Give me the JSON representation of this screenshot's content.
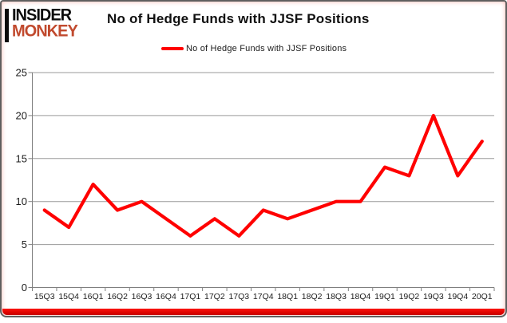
{
  "logo": {
    "line1": "INSIDER",
    "line2": "MONKEY",
    "line2_color": "#c14a2e"
  },
  "header": {
    "title": "No of Hedge Funds with JJSF Positions"
  },
  "legend": {
    "label": "No of Hedge Funds with JJSF Positions",
    "line_color": "#ff0000"
  },
  "colors": {
    "series_red": "#ff0000",
    "bottom_bar_red": "#e00400",
    "gridline_gray": "#9a9a9a",
    "axis_gray": "#7f7f7f",
    "tick_label": "#1c1c1c"
  },
  "chart_data": {
    "type": "line",
    "title": "No of Hedge Funds with JJSF Positions",
    "series_name": "No of Hedge Funds with JJSF Positions",
    "categories": [
      "15Q3",
      "15Q4",
      "16Q1",
      "16Q2",
      "16Q3",
      "16Q4",
      "17Q1",
      "17Q2",
      "17Q3",
      "17Q4",
      "18Q1",
      "18Q2",
      "18Q3",
      "18Q4",
      "19Q1",
      "19Q2",
      "19Q3",
      "19Q4",
      "20Q1"
    ],
    "values": [
      9,
      7,
      12,
      9,
      10,
      8,
      6,
      8,
      6,
      9,
      8,
      9,
      10,
      10,
      14,
      13,
      20,
      13,
      17
    ],
    "xlabel": "",
    "ylabel": "",
    "ylim": [
      0,
      25
    ],
    "yticks": [
      0,
      5,
      10,
      15,
      20,
      25
    ],
    "grid": true,
    "legend_position": "top-center"
  }
}
